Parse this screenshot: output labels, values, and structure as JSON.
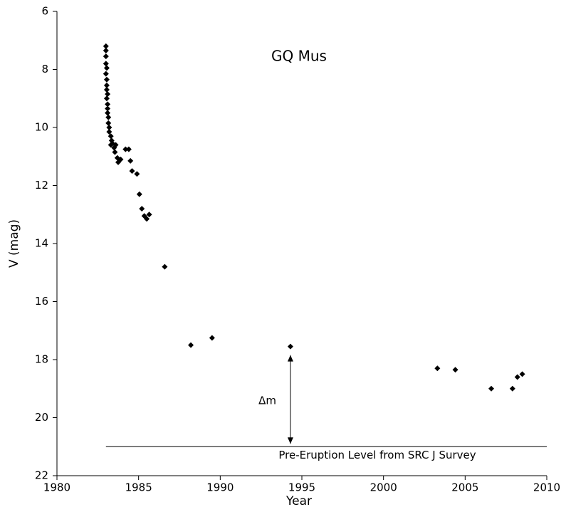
{
  "chart_data": {
    "type": "scatter",
    "annotation": "GQ Mus",
    "xlabel": "Year",
    "ylabel": "V (mag)",
    "color": "#000000",
    "y_inverted": true,
    "x": [
      1983.0,
      1983.0,
      1983.0,
      1983.0,
      1983.05,
      1983.0,
      1983.05,
      1983.05,
      1983.05,
      1983.1,
      1983.05,
      1983.1,
      1983.1,
      1983.1,
      1983.15,
      1983.15,
      1983.2,
      1983.2,
      1983.3,
      1983.35,
      1983.4,
      1983.5,
      1983.55,
      1983.7,
      1983.75,
      1983.9,
      1983.6,
      1983.3,
      1984.2,
      1984.4,
      1984.5,
      1984.6,
      1984.9,
      1985.05,
      1985.2,
      1985.35,
      1985.5,
      1985.65,
      1986.6,
      1988.2,
      1989.5,
      1994.3,
      2003.3,
      2004.4,
      2006.6,
      2007.9,
      2008.2,
      2008.5
    ],
    "values": [
      7.2,
      7.35,
      7.55,
      7.8,
      7.95,
      8.15,
      8.35,
      8.55,
      8.7,
      8.85,
      9.0,
      9.2,
      9.35,
      9.5,
      9.65,
      9.85,
      10.0,
      10.15,
      10.3,
      10.45,
      10.55,
      10.7,
      10.85,
      11.05,
      11.2,
      11.1,
      10.6,
      10.6,
      10.75,
      10.75,
      11.15,
      11.5,
      11.6,
      12.3,
      12.8,
      13.05,
      13.15,
      13.0,
      14.8,
      17.5,
      17.25,
      17.55,
      18.3,
      18.35,
      19.0,
      19.0,
      18.6,
      18.5
    ],
    "reference_level": {
      "value": 21,
      "label": "Pre-Eruption Level from SRC J Survey"
    },
    "delta_label": "Δm",
    "xlim": [
      1980,
      2010
    ],
    "xticks": [
      1980,
      1985,
      1990,
      1995,
      2000,
      2005,
      2010
    ],
    "ylim": [
      6,
      22
    ],
    "yticks": [
      6,
      8,
      10,
      12,
      14,
      16,
      18,
      20,
      22
    ]
  }
}
